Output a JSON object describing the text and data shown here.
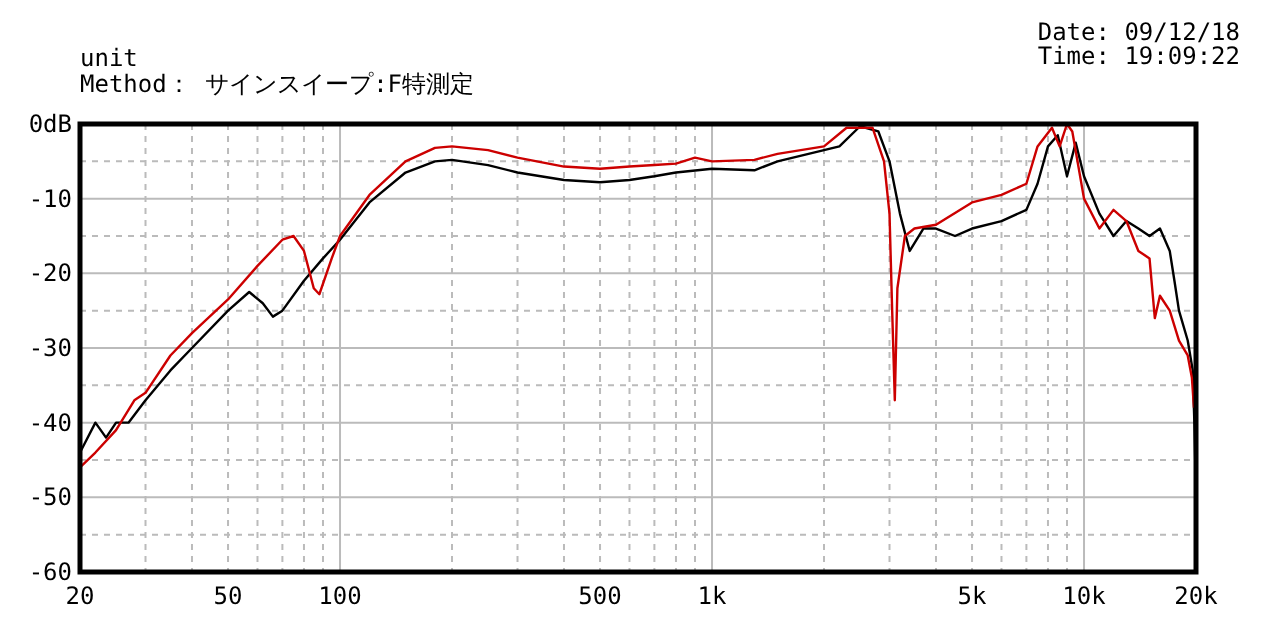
{
  "chart_data": {
    "type": "line",
    "subtitle": "unit",
    "annotations": [
      "Method： サインスイープ:F特測定",
      "Date: 09/12/18",
      "Time: 19:09:22"
    ],
    "log": "x",
    "grid": true,
    "line_style": "solid",
    "marker": "none",
    "xlim": [
      20,
      20000
    ],
    "ylim": [
      -60,
      0
    ],
    "xticks": [
      20,
      50,
      100,
      500,
      {
        "value": 1000,
        "label": "1k"
      },
      {
        "value": 5000,
        "label": "5k"
      },
      {
        "value": 10000,
        "label": "10k"
      },
      {
        "value": 20000,
        "label": "20k"
      }
    ],
    "yticks": [
      {
        "value": 0,
        "label": "0dB"
      },
      -10,
      -20,
      -30,
      -40,
      -50,
      -60
    ],
    "series": [
      {
        "color": "#000000",
        "x": [
          20,
          22,
          23.5,
          25,
          27,
          30,
          35,
          40,
          50,
          57,
          62,
          66,
          70,
          80,
          90,
          100,
          120,
          150,
          180,
          200,
          250,
          300,
          400,
          500,
          600,
          700,
          800,
          1000,
          1300,
          1500,
          2000,
          2200,
          2500,
          2800,
          3000,
          3200,
          3400,
          3700,
          4000,
          4500,
          5000,
          6000,
          7000,
          7500,
          8000,
          8500,
          9000,
          9500,
          10000,
          11000,
          12000,
          13000,
          14000,
          15000,
          16000,
          17000,
          17500,
          18000,
          19000,
          19600,
          19800,
          20000
        ],
        "values": [
          -44,
          -40,
          -42,
          -40,
          -40,
          -37,
          -33,
          -30,
          -25,
          -22.5,
          -24,
          -25.8,
          -25,
          -21,
          -18,
          -15.5,
          -10.5,
          -6.5,
          -5,
          -4.8,
          -5.5,
          -6.5,
          -7.5,
          -7.8,
          -7.5,
          -7,
          -6.5,
          -6,
          -6.2,
          -5,
          -3.5,
          -3,
          -0.3,
          -1,
          -5,
          -12,
          -17,
          -14,
          -14,
          -15,
          -14,
          -13,
          -11.5,
          -8,
          -3,
          -1.5,
          -7,
          -2.5,
          -7,
          -12,
          -15,
          -13,
          -14,
          -15,
          -14,
          -17,
          -21,
          -25,
          -29,
          -33,
          -40,
          -50
        ]
      },
      {
        "color": "#cc0000",
        "x": [
          20,
          22,
          25,
          28,
          30,
          35,
          40,
          50,
          60,
          70,
          75,
          80,
          85,
          88,
          95,
          100,
          120,
          150,
          180,
          200,
          250,
          300,
          400,
          500,
          600,
          700,
          800,
          900,
          1000,
          1300,
          1500,
          2000,
          2300,
          2700,
          2900,
          3000,
          3050,
          3100,
          3150,
          3300,
          3500,
          4000,
          5000,
          6000,
          7000,
          7500,
          8200,
          8600,
          9000,
          9300,
          10000,
          11000,
          12000,
          13000,
          14000,
          15000,
          15500,
          16000,
          17000,
          18000,
          19000,
          19500,
          19750
        ],
        "values": [
          -46,
          -44,
          -41,
          -37,
          -36,
          -31,
          -28,
          -23.5,
          -19,
          -15.5,
          -15,
          -17,
          -22,
          -22.8,
          -18,
          -15,
          -9.5,
          -5,
          -3.2,
          -3,
          -3.5,
          -4.5,
          -5.7,
          -6,
          -5.7,
          -5.5,
          -5.3,
          -4.5,
          -5,
          -4.8,
          -4,
          -3,
          -0.5,
          -0.5,
          -5,
          -12,
          -25,
          -37,
          -22,
          -15,
          -14,
          -13.5,
          -10.5,
          -9.5,
          -8,
          -3,
          -0.5,
          -3,
          0,
          -1,
          -10,
          -14,
          -11.5,
          -13,
          -17,
          -18,
          -26,
          -23,
          -25,
          -29,
          -31,
          -34,
          -38
        ]
      }
    ]
  }
}
